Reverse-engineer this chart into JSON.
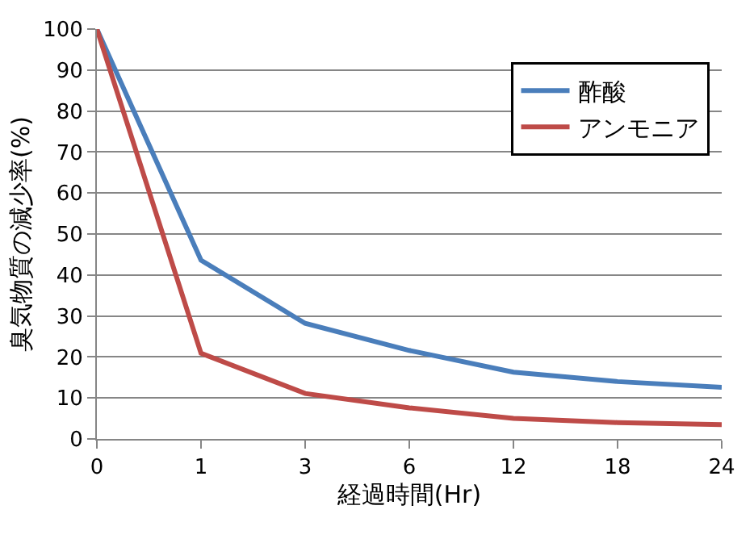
{
  "chart_data": {
    "type": "line",
    "xlabel": "経過時間(Hr)",
    "ylabel": "臭気物質の減少率(%)",
    "categories": [
      "0",
      "1",
      "3",
      "6",
      "12",
      "18",
      "24"
    ],
    "series": [
      {
        "name": "酢酸",
        "color": "#4a7ebb",
        "values": [
          100,
          43.6,
          28.2,
          21.6,
          16.3,
          14,
          12.6
        ]
      },
      {
        "name": "アンモニア",
        "color": "#be4b48",
        "values": [
          100,
          20.9,
          11.1,
          7.6,
          5,
          4,
          3.5
        ]
      }
    ],
    "ylim": [
      0,
      100
    ],
    "yticks": [
      0,
      10,
      20,
      30,
      40,
      50,
      60,
      70,
      80,
      90,
      100
    ],
    "grid": "y",
    "legend": "top right",
    "marker": "none",
    "line_style": "solid"
  }
}
